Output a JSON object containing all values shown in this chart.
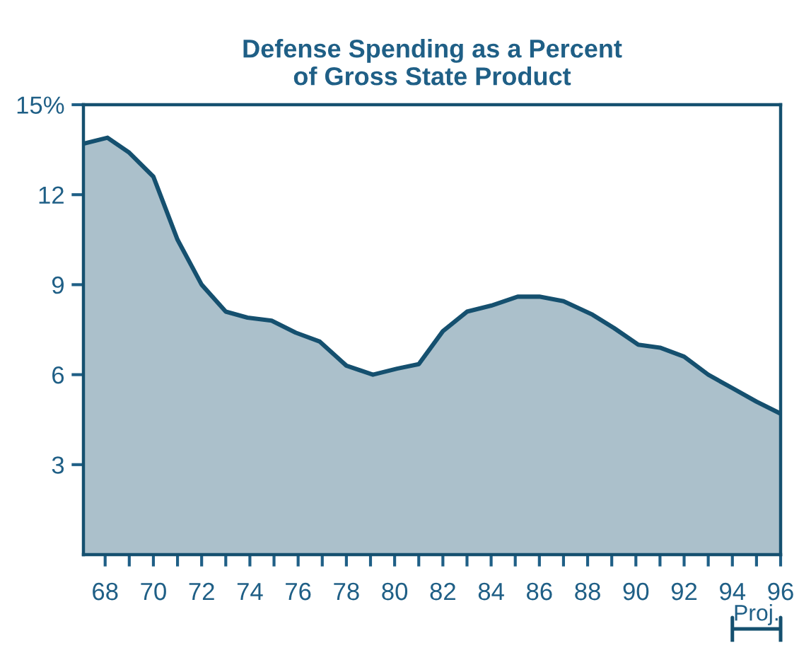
{
  "chart_data": {
    "type": "area",
    "title": "Defense Spending as a Percent\nof Gross State Product",
    "x": [
      67.1,
      68.1,
      69.0,
      70.0,
      71.0,
      72.0,
      73.0,
      73.9,
      74.9,
      75.9,
      76.9,
      78.0,
      79.1,
      80.1,
      81.0,
      82.0,
      83.0,
      84.0,
      85.1,
      86.0,
      87.0,
      88.2,
      89.1,
      90.1,
      91.0,
      92.0,
      93.0,
      94.0,
      95.0,
      96.0
    ],
    "series": [
      {
        "color": "#15506f",
        "values": [
          13.7,
          13.9,
          13.4,
          12.6,
          10.5,
          9.0,
          8.1,
          7.9,
          7.8,
          7.4,
          7.1,
          6.3,
          6.0,
          6.2,
          6.35,
          7.45,
          8.1,
          8.3,
          8.6,
          8.6,
          8.45,
          8.0,
          7.55,
          7.0,
          6.9,
          6.6,
          6.0,
          5.55,
          5.1,
          4.7
        ]
      }
    ],
    "xlim": [
      67.1,
      96
    ],
    "ylim": [
      0,
      15
    ],
    "xticks": [
      68,
      {
        "value": 69,
        "label": null
      },
      70,
      {
        "value": 71,
        "label": null
      },
      72,
      {
        "value": 73,
        "label": null
      },
      74,
      {
        "value": 75,
        "label": null
      },
      76,
      {
        "value": 77,
        "label": null
      },
      78,
      {
        "value": 79,
        "label": null
      },
      80,
      {
        "value": 81,
        "label": null
      },
      82,
      {
        "value": 83,
        "label": null
      },
      84,
      {
        "value": 85,
        "label": null
      },
      86,
      {
        "value": 87,
        "label": null
      },
      88,
      {
        "value": 89,
        "label": null
      },
      90,
      {
        "value": 91,
        "label": null
      },
      92,
      {
        "value": 93,
        "label": null
      },
      94,
      {
        "value": 95,
        "label": null
      },
      96
    ],
    "yticks": [
      3,
      6,
      9,
      12,
      {
        "value": 15,
        "label": "15%"
      }
    ],
    "annotations": [
      "Proj."
    ],
    "grid": false,
    "legend": false
  }
}
